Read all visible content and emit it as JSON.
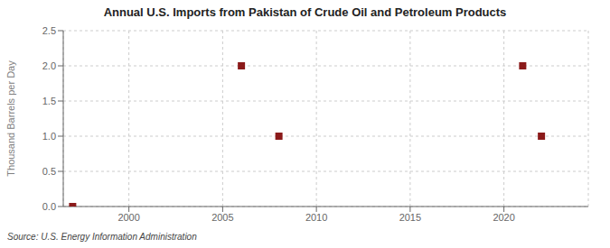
{
  "chart_data": {
    "type": "scatter",
    "title": "Annual U.S. Imports from Pakistan of Crude Oil and Petroleum Products",
    "ylabel": "Thousand Barrels per Day",
    "annotation": "Source: U.S. Energy Information Administration",
    "x": [
      1997,
      2006,
      2008,
      2021,
      2022
    ],
    "values": [
      0.0,
      2.0,
      1.0,
      2.0,
      1.0
    ],
    "color": "#8b1a1a",
    "marker": "square",
    "xlim": [
      1996.5,
      2024.5
    ],
    "ylim": [
      0.0,
      2.5
    ],
    "xticks": [
      2000,
      2005,
      2010,
      2015,
      2020
    ],
    "yticks": [
      {
        "value": 0.0,
        "label": "0.0"
      },
      0.5,
      {
        "value": 1.0,
        "label": "1.0"
      },
      1.5,
      {
        "value": 2.0,
        "label": "2.0"
      },
      2.5
    ],
    "grid": true
  }
}
